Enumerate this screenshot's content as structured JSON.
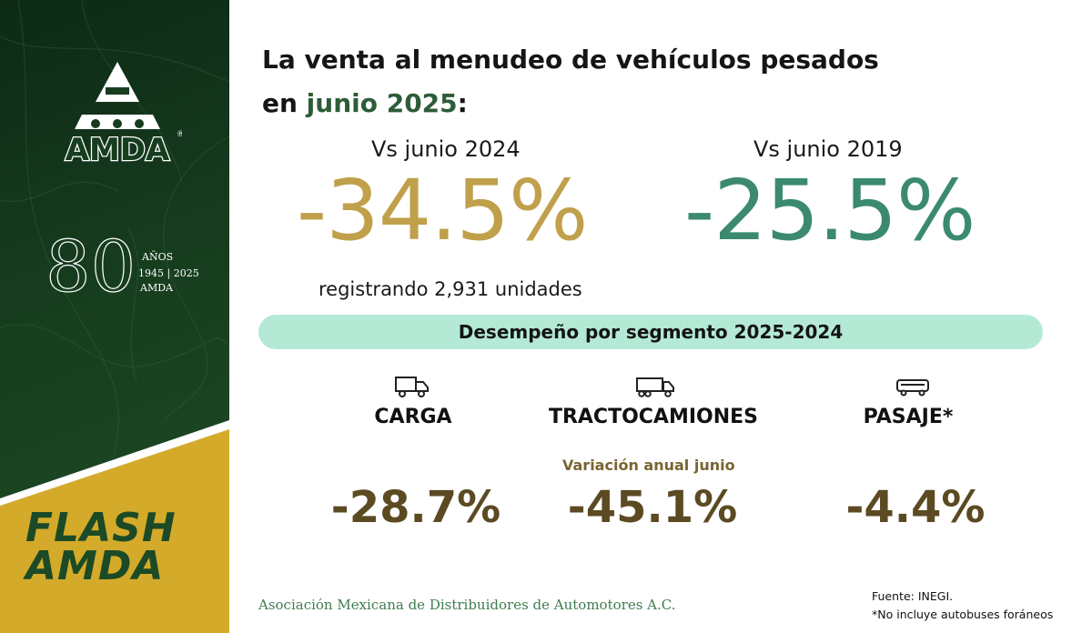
{
  "branding": {
    "logo_text": "AMDA",
    "registered_mark": "®",
    "anniversary_number": "80",
    "anniversary_label": "AÑOS",
    "anniversary_years": "1945 | 2025",
    "anniversary_org": "AMDA",
    "flash_line1": "FLASH",
    "flash_line2": "AMDA"
  },
  "headline": {
    "line1": "La venta al menudeo de vehículos pesados",
    "line2_prefix": "en ",
    "line2_highlight": "junio 2025",
    "line2_suffix": ":"
  },
  "comparisons": [
    {
      "label": "Vs junio 2024",
      "value": "-34.5%"
    },
    {
      "label": "Vs junio 2019",
      "value": "-25.5%"
    }
  ],
  "units_text": "registrando 2,931 unidades",
  "segment_title": "Desempeño por segmento 2025-2024",
  "segments": [
    {
      "name": "CARGA",
      "icon": "truck-icon",
      "value": "-28.7%"
    },
    {
      "name": "TRACTOCAMIONES",
      "icon": "semi-truck-icon",
      "value": "-45.1%"
    },
    {
      "name": "PASAJE*",
      "icon": "bus-icon",
      "value": "-4.4%"
    }
  ],
  "variation_label": "Variación anual junio",
  "footer": {
    "association": "Asociación Mexicana de Distribuidores de Automotores A.C.",
    "source": "Fuente: INEGI.",
    "note": "*No incluye autobuses foráneos"
  },
  "colors": {
    "dark_green": "#173d1f",
    "gold": "#d4aa2a",
    "pct_gold": "#c0a04b",
    "pct_green": "#3b8a6f",
    "band": "#b4ead5",
    "segment_value": "#5b4a22"
  }
}
